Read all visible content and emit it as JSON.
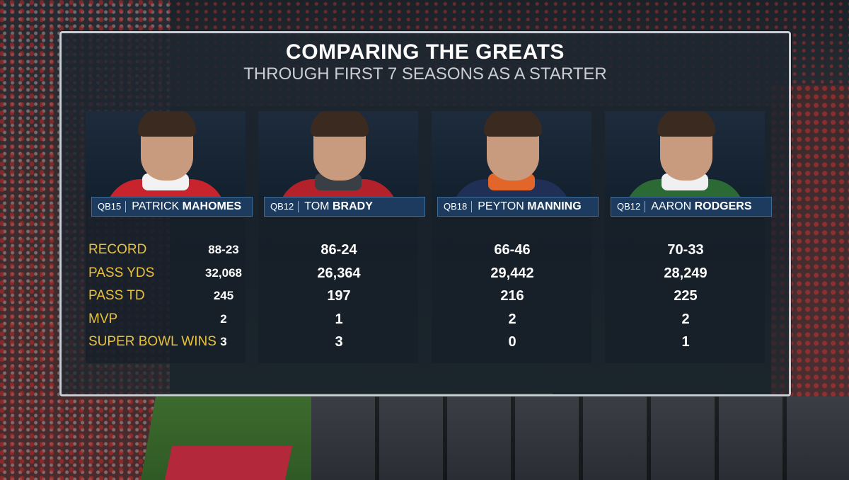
{
  "title": "COMPARING THE GREATS",
  "subtitle": "THROUGH FIRST 7 SEASONS AS A STARTER",
  "stat_labels": [
    "RECORD",
    "PASS YDS",
    "PASS TD",
    "MVP",
    "SUPER BOWL WINS"
  ],
  "players": [
    {
      "number": "QB15",
      "first": "PATRICK",
      "last": "MAHOMES",
      "stats": [
        "88-23",
        "32,068",
        "245",
        "2",
        "3"
      ],
      "jersey_color": "#c8242e",
      "collar_color": "#f2f2f2"
    },
    {
      "number": "QB12",
      "first": "TOM",
      "last": "BRADY",
      "stats": [
        "86-24",
        "26,364",
        "197",
        "1",
        "3"
      ],
      "jersey_color": "#b3222b",
      "collar_color": "#3a3f45"
    },
    {
      "number": "QB18",
      "first": "PEYTON",
      "last": "MANNING",
      "stats": [
        "66-46",
        "29,442",
        "216",
        "2",
        "0"
      ],
      "jersey_color": "#1f2f55",
      "collar_color": "#e2662a"
    },
    {
      "number": "QB12",
      "first": "AARON",
      "last": "RODGERS",
      "stats": [
        "70-33",
        "28,249",
        "225",
        "2",
        "1"
      ],
      "jersey_color": "#2b6a35",
      "collar_color": "#f0f0f0"
    }
  ],
  "colors": {
    "label_gold": "#e9c23a",
    "name_bar": "#1c3b5e",
    "panel_border": "#c9cfd6"
  }
}
